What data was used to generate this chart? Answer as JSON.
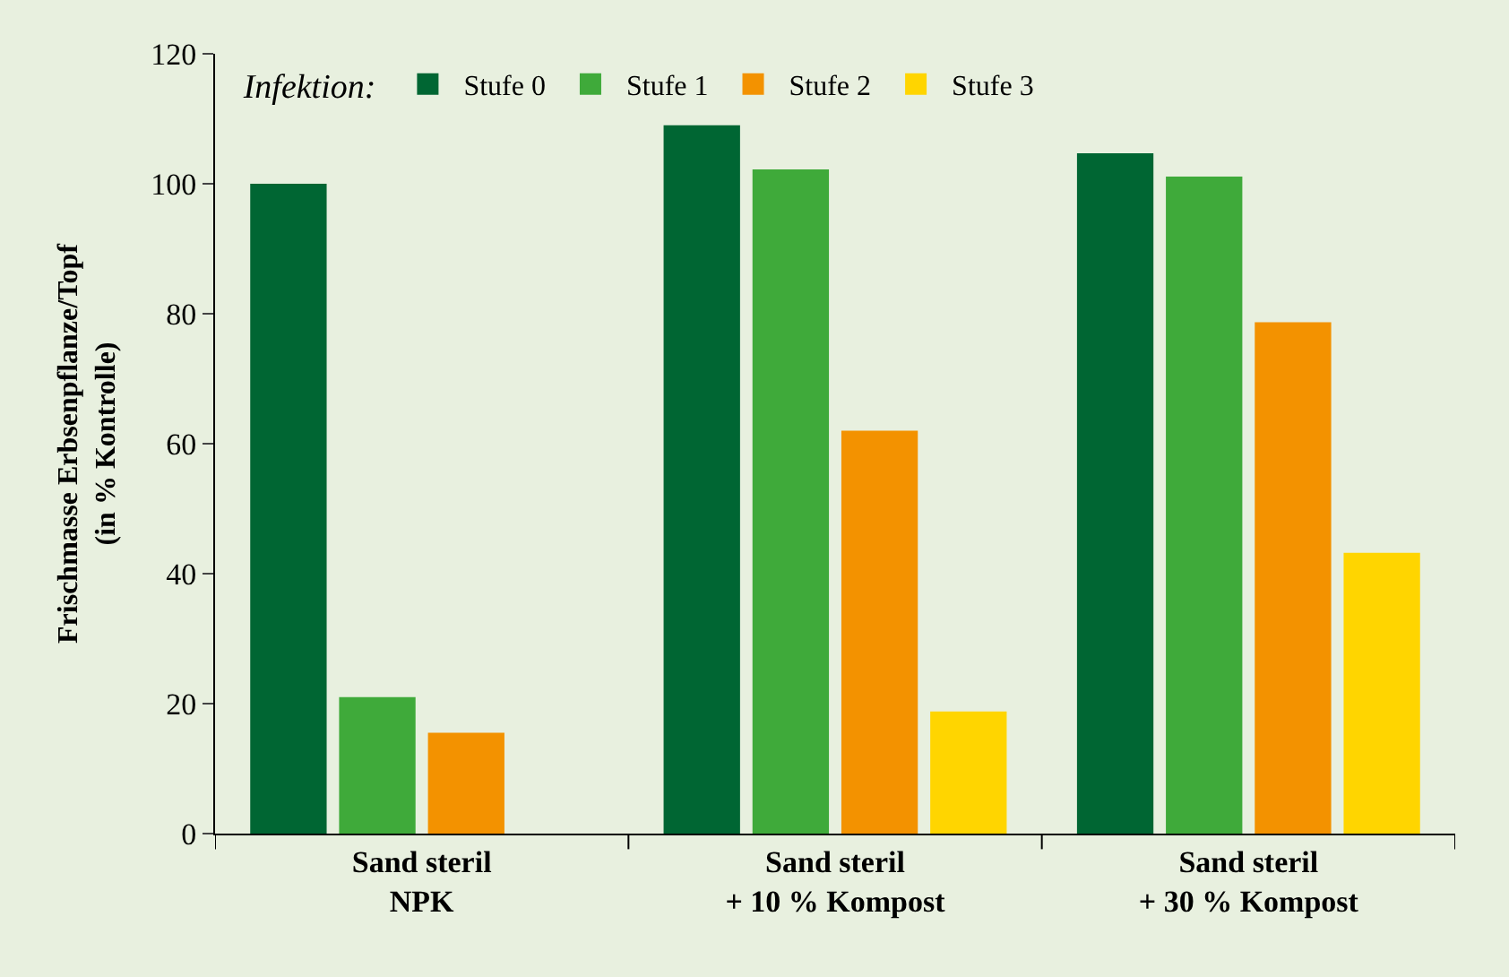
{
  "chart_data": {
    "type": "bar",
    "ylabel": "Frischmasse Erbsenpflanze/Topf\n(in % Kontrolle)",
    "legend_title": "Infektion:",
    "categories": [
      "Sand steril\nNPK",
      "Sand steril\n+ 10 % Kompost",
      "Sand steril\n+ 30 % Kompost"
    ],
    "series": [
      {
        "name": "Stufe 0",
        "color": "#006633",
        "values": [
          100,
          109,
          104.7
        ]
      },
      {
        "name": "Stufe 1",
        "color": "#3faa3a",
        "values": [
          21,
          102.2,
          101.1
        ]
      },
      {
        "name": "Stufe 2",
        "color": "#f39200",
        "values": [
          15.5,
          62,
          78.7
        ]
      },
      {
        "name": "Stufe 3",
        "color": "#ffd500",
        "values": [
          null,
          18.8,
          43.2
        ]
      }
    ],
    "ylim": [
      0,
      120
    ],
    "yticks": [
      0,
      20,
      40,
      60,
      80,
      100,
      120
    ],
    "grid": false,
    "legend": "top"
  }
}
